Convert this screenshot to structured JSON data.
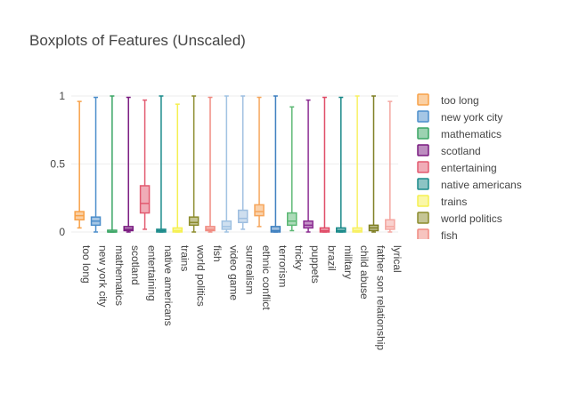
{
  "chart_data": {
    "type": "box",
    "title": "Boxplots of Features (Unscaled)",
    "ylim": [
      0,
      1
    ],
    "yticks": [
      0,
      0.5,
      1
    ],
    "ytick_labels": [
      "0",
      "0.5",
      "1"
    ],
    "grid": true,
    "legend_position": "right",
    "series": [
      {
        "name": "too long",
        "color": "#f7a148",
        "min": 0.03,
        "q1": 0.09,
        "median": 0.12,
        "q3": 0.15,
        "max": 0.96
      },
      {
        "name": "new york city",
        "color": "#4c8ecb",
        "min": 0.0,
        "q1": 0.05,
        "median": 0.08,
        "q3": 0.11,
        "max": 0.99
      },
      {
        "name": "mathematics",
        "color": "#3aa564",
        "min": 0.0,
        "q1": 0.0,
        "median": 0.0,
        "q3": 0.01,
        "max": 1.0
      },
      {
        "name": "scotland",
        "color": "#7a1b80",
        "min": 0.0,
        "q1": 0.01,
        "median": 0.02,
        "q3": 0.04,
        "max": 0.99
      },
      {
        "name": "entertaining",
        "color": "#e25a70",
        "min": 0.02,
        "q1": 0.14,
        "median": 0.21,
        "q3": 0.34,
        "max": 0.97
      },
      {
        "name": "native americans",
        "color": "#1a8a8a",
        "min": 0.0,
        "q1": 0.0,
        "median": 0.01,
        "q3": 0.02,
        "max": 1.0
      },
      {
        "name": "trains",
        "color": "#f5f050",
        "min": 0.0,
        "q1": 0.0,
        "median": 0.01,
        "q3": 0.03,
        "max": 0.94
      },
      {
        "name": "world politics",
        "color": "#8c8c2c",
        "min": 0.0,
        "q1": 0.05,
        "median": 0.07,
        "q3": 0.11,
        "max": 1.0
      },
      {
        "name": "fish",
        "color": "#f08a80",
        "min": 0.0,
        "q1": 0.01,
        "median": 0.02,
        "q3": 0.04,
        "max": 0.99
      },
      {
        "name": "video game",
        "color": "#a0c2e2",
        "min": 0.0,
        "q1": 0.02,
        "median": 0.04,
        "q3": 0.08,
        "max": 1.0
      },
      {
        "name": "surrealism",
        "color": "#9ebee0",
        "min": 0.02,
        "q1": 0.07,
        "median": 0.1,
        "q3": 0.16,
        "max": 1.0
      },
      {
        "name": "ethnic conflict",
        "color": "#f6a55a",
        "min": 0.04,
        "q1": 0.12,
        "median": 0.15,
        "q3": 0.2,
        "max": 0.99
      },
      {
        "name": "terrorism",
        "color": "#3d7fbf",
        "min": 0.0,
        "q1": 0.0,
        "median": 0.01,
        "q3": 0.04,
        "max": 1.0
      },
      {
        "name": "tricky",
        "color": "#5cb874",
        "min": 0.01,
        "q1": 0.05,
        "median": 0.08,
        "q3": 0.14,
        "max": 0.92
      },
      {
        "name": "puppets",
        "color": "#8a2a90",
        "min": 0.0,
        "q1": 0.03,
        "median": 0.05,
        "q3": 0.08,
        "max": 0.97
      },
      {
        "name": "brazil",
        "color": "#e04a66",
        "min": 0.0,
        "q1": 0.0,
        "median": 0.01,
        "q3": 0.03,
        "max": 0.99
      },
      {
        "name": "military",
        "color": "#178888",
        "min": 0.0,
        "q1": 0.0,
        "median": 0.01,
        "q3": 0.03,
        "max": 0.99
      },
      {
        "name": "child abuse",
        "color": "#f8f060",
        "min": 0.0,
        "q1": 0.0,
        "median": 0.01,
        "q3": 0.03,
        "max": 1.0
      },
      {
        "name": "father son relationship",
        "color": "#7e7e22",
        "min": 0.0,
        "q1": 0.01,
        "median": 0.03,
        "q3": 0.05,
        "max": 1.0
      },
      {
        "name": "lyrical",
        "color": "#f4a6a0",
        "min": 0.0,
        "q1": 0.02,
        "median": 0.04,
        "q3": 0.09,
        "max": 0.96
      }
    ],
    "legend_visible_count": 9
  }
}
